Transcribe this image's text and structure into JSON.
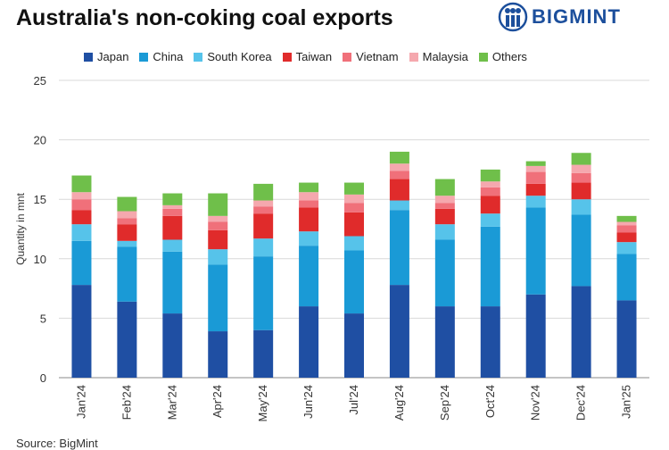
{
  "title": "Australia's non-coking coal exports",
  "brand": {
    "name": "BIGMINT",
    "logo_icon": "bigmint-logo-icon"
  },
  "source": "Source: BigMint",
  "colors": {
    "Japan": "#1f4fa3",
    "China": "#1a9ad6",
    "South Korea": "#56c3ea",
    "Taiwan": "#e02b2b",
    "Vietnam": "#f0707a",
    "Malaysia": "#f5a8ae",
    "Others": "#6fbf4a"
  },
  "chart_data": {
    "type": "bar",
    "stacked": true,
    "title": "Australia's non-coking coal exports",
    "xlabel": "",
    "ylabel": "Quantity in mnt",
    "ylim": [
      0,
      25
    ],
    "yticks": [
      0,
      5,
      10,
      15,
      20,
      25
    ],
    "grid": true,
    "legend_position": "top",
    "categories": [
      "Jan'24",
      "Feb'24",
      "Mar'24",
      "Apr'24",
      "May'24",
      "Jun'24",
      "Jul'24",
      "Aug'24",
      "Sep'24",
      "Oct'24",
      "Nov'24",
      "Dec'24",
      "Jan'25"
    ],
    "series": [
      {
        "name": "Japan",
        "values": [
          7.8,
          6.4,
          5.4,
          3.9,
          4.0,
          6.0,
          5.4,
          7.8,
          6.0,
          6.0,
          7.0,
          7.7,
          6.5
        ]
      },
      {
        "name": "China",
        "values": [
          3.7,
          4.6,
          5.2,
          5.6,
          6.2,
          5.1,
          5.3,
          6.3,
          5.6,
          6.7,
          7.3,
          6.0,
          3.9
        ]
      },
      {
        "name": "South Korea",
        "values": [
          1.4,
          0.5,
          1.0,
          1.3,
          1.5,
          1.2,
          1.2,
          0.8,
          1.3,
          1.1,
          1.0,
          1.3,
          1.0
        ]
      },
      {
        "name": "Taiwan",
        "values": [
          1.2,
          1.4,
          2.0,
          1.6,
          2.1,
          2.0,
          2.0,
          1.8,
          1.3,
          1.5,
          1.0,
          1.4,
          0.8
        ]
      },
      {
        "name": "Vietnam",
        "values": [
          0.9,
          0.5,
          0.6,
          0.7,
          0.6,
          0.6,
          0.8,
          0.7,
          0.5,
          0.7,
          1.0,
          0.8,
          0.6
        ]
      },
      {
        "name": "Malaysia",
        "values": [
          0.6,
          0.6,
          0.3,
          0.5,
          0.5,
          0.7,
          0.7,
          0.6,
          0.6,
          0.5,
          0.5,
          0.7,
          0.3
        ]
      },
      {
        "name": "Others",
        "values": [
          1.4,
          1.2,
          1.0,
          1.9,
          1.4,
          0.8,
          1.0,
          1.0,
          1.4,
          1.0,
          0.4,
          1.0,
          0.5
        ]
      }
    ]
  }
}
